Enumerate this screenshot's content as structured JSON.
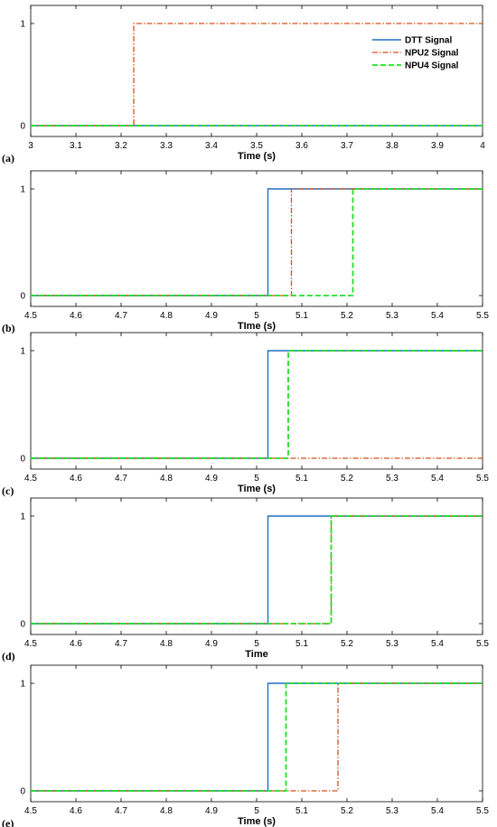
{
  "colors": {
    "dtt": "#1f6fc4",
    "npu2": "#d4501e",
    "npu4": "#22e022"
  },
  "chart_data": [
    {
      "type": "line",
      "panel_label": "(a)",
      "xlabel": "Time (s)",
      "xlim": [
        3,
        4
      ],
      "ylim": [
        0,
        1
      ],
      "xticks": [
        "3",
        "3.1",
        "3.2",
        "3.3",
        "3.4",
        "3.5",
        "3.6",
        "3.7",
        "3.8",
        "3.9",
        "4"
      ],
      "yticks": [
        "0",
        "1"
      ],
      "legend": {
        "placement": "top-right",
        "entries": [
          "DTT Signal",
          "NPU2  Signal",
          "NPU4  Signal"
        ]
      },
      "series": [
        {
          "key": "dtt",
          "style": "solid",
          "step_at": null
        },
        {
          "key": "npu2",
          "style": "dashdot",
          "step_at": 3.228
        },
        {
          "key": "npu4",
          "style": "dashed",
          "step_at": null
        }
      ]
    },
    {
      "type": "line",
      "panel_label": "(b)",
      "xlabel": "TIme (s)",
      "xlim": [
        4.5,
        5.5
      ],
      "ylim": [
        0,
        1
      ],
      "xticks": [
        "4.5",
        "4.6",
        "4.7",
        "4.8",
        "4.9",
        "5",
        "5.1",
        "5.2",
        "5.3",
        "5.4",
        "5.5"
      ],
      "yticks": [
        "0",
        "1"
      ],
      "series": [
        {
          "key": "dtt",
          "style": "solid",
          "step_at": 5.025
        },
        {
          "key": "npu2",
          "style": "dashdot",
          "step_at": 5.077
        },
        {
          "key": "npu4",
          "style": "dashed",
          "step_at": 5.213
        }
      ]
    },
    {
      "type": "line",
      "panel_label": "(c)",
      "xlabel": "Time (s)",
      "xlim": [
        4.5,
        5.5
      ],
      "ylim": [
        0,
        1
      ],
      "xticks": [
        "4.5",
        "4.6",
        "4.7",
        "4.8",
        "4.9",
        "5",
        "5.1",
        "5.2",
        "5.3",
        "5.4",
        "5.5"
      ],
      "yticks": [
        "0",
        "1"
      ],
      "series": [
        {
          "key": "dtt",
          "style": "solid",
          "step_at": 5.025
        },
        {
          "key": "npu2",
          "style": "dashdot",
          "step_at": null
        },
        {
          "key": "npu4",
          "style": "dashed",
          "step_at": 5.07
        }
      ]
    },
    {
      "type": "line",
      "panel_label": "(d)",
      "xlabel": "Time",
      "xlim": [
        4.5,
        5.5
      ],
      "ylim": [
        0,
        1
      ],
      "xticks": [
        "4.5",
        "4.6",
        "4.7",
        "4.8",
        "4.9",
        "5",
        "5.1",
        "5.2",
        "5.3",
        "5.4",
        "5.5"
      ],
      "yticks": [
        "0",
        "1"
      ],
      "series": [
        {
          "key": "dtt",
          "style": "solid",
          "step_at": 5.025
        },
        {
          "key": "npu2",
          "style": "dashdot",
          "step_at": 5.165
        },
        {
          "key": "npu4",
          "style": "dashed",
          "step_at": 5.165
        }
      ]
    },
    {
      "type": "line",
      "panel_label": "(e)",
      "xlabel": "Time (s)",
      "xlim": [
        4.5,
        5.5
      ],
      "ylim": [
        0,
        1
      ],
      "xticks": [
        "4.5",
        "4.6",
        "4.7",
        "4.8",
        "4.9",
        "5",
        "5.1",
        "5.2",
        "5.3",
        "5.4",
        "5.5"
      ],
      "yticks": [
        "0",
        "1"
      ],
      "series": [
        {
          "key": "dtt",
          "style": "solid",
          "step_at": 5.025
        },
        {
          "key": "npu2",
          "style": "dashdot",
          "step_at": 5.18
        },
        {
          "key": "npu4",
          "style": "dashed",
          "step_at": 5.065
        }
      ]
    }
  ]
}
